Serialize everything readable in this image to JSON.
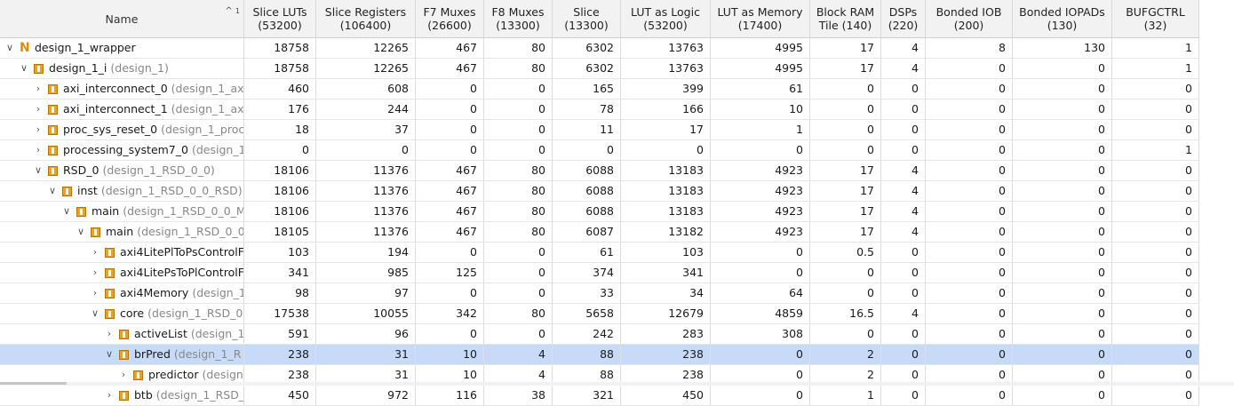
{
  "columns": [
    {
      "line1": "Name",
      "line2": ""
    },
    {
      "line1": "Slice LUTs",
      "line2": "(53200)"
    },
    {
      "line1": "Slice Registers",
      "line2": "(106400)"
    },
    {
      "line1": "F7 Muxes",
      "line2": "(26600)"
    },
    {
      "line1": "F8 Muxes",
      "line2": "(13300)"
    },
    {
      "line1": "Slice",
      "line2": "(13300)"
    },
    {
      "line1": "LUT as Logic",
      "line2": "(53200)"
    },
    {
      "line1": "LUT as Memory",
      "line2": "(17400)"
    },
    {
      "line1": "Block RAM",
      "line2": "Tile (140)"
    },
    {
      "line1": "DSPs",
      "line2": "(220)"
    },
    {
      "line1": "Bonded IOB",
      "line2": "(200)"
    },
    {
      "line1": "Bonded IOPADs",
      "line2": "(130)"
    },
    {
      "line1": "BUFGCTRL",
      "line2": "(32)"
    }
  ],
  "sort_indicator": {
    "arrow": "^",
    "order": "1"
  },
  "rows": [
    {
      "name": "design_1_wrapper",
      "sub": "",
      "depth": 0,
      "expander": "v",
      "icon": "netlist-n-icon",
      "selected": false,
      "values": [
        "18758",
        "12265",
        "467",
        "80",
        "6302",
        "13763",
        "4995",
        "17",
        "4",
        "8",
        "130",
        "1"
      ]
    },
    {
      "name": "design_1_i",
      "sub": "(design_1)",
      "depth": 1,
      "expander": "v",
      "icon": "module-icon",
      "selected": false,
      "values": [
        "18758",
        "12265",
        "467",
        "80",
        "6302",
        "13763",
        "4995",
        "17",
        "4",
        "0",
        "0",
        "1"
      ]
    },
    {
      "name": "axi_interconnect_0",
      "sub": "(design_1_ax",
      "depth": 2,
      "expander": ">",
      "icon": "module-icon",
      "selected": false,
      "values": [
        "460",
        "608",
        "0",
        "0",
        "165",
        "399",
        "61",
        "0",
        "0",
        "0",
        "0",
        "0"
      ]
    },
    {
      "name": "axi_interconnect_1",
      "sub": "(design_1_ax",
      "depth": 2,
      "expander": ">",
      "icon": "module-icon",
      "selected": false,
      "values": [
        "176",
        "244",
        "0",
        "0",
        "78",
        "166",
        "10",
        "0",
        "0",
        "0",
        "0",
        "0"
      ]
    },
    {
      "name": "proc_sys_reset_0",
      "sub": "(design_1_proc",
      "depth": 2,
      "expander": ">",
      "icon": "module-icon",
      "selected": false,
      "values": [
        "18",
        "37",
        "0",
        "0",
        "11",
        "17",
        "1",
        "0",
        "0",
        "0",
        "0",
        "0"
      ]
    },
    {
      "name": "processing_system7_0",
      "sub": "(design_1",
      "depth": 2,
      "expander": ">",
      "icon": "module-icon",
      "selected": false,
      "values": [
        "0",
        "0",
        "0",
        "0",
        "0",
        "0",
        "0",
        "0",
        "0",
        "0",
        "0",
        "1"
      ]
    },
    {
      "name": "RSD_0",
      "sub": "(design_1_RSD_0_0)",
      "depth": 2,
      "expander": "v",
      "icon": "module-icon",
      "selected": false,
      "values": [
        "18106",
        "11376",
        "467",
        "80",
        "6088",
        "13183",
        "4923",
        "17",
        "4",
        "0",
        "0",
        "0"
      ]
    },
    {
      "name": "inst",
      "sub": "(design_1_RSD_0_0_RSD)",
      "depth": 3,
      "expander": "v",
      "icon": "module-icon",
      "selected": false,
      "values": [
        "18106",
        "11376",
        "467",
        "80",
        "6088",
        "13183",
        "4923",
        "17",
        "4",
        "0",
        "0",
        "0"
      ]
    },
    {
      "name": "main",
      "sub": "(design_1_RSD_0_0_M",
      "depth": 4,
      "expander": "v",
      "icon": "module-icon",
      "selected": false,
      "values": [
        "18106",
        "11376",
        "467",
        "80",
        "6088",
        "13183",
        "4923",
        "17",
        "4",
        "0",
        "0",
        "0"
      ]
    },
    {
      "name": "main",
      "sub": "(design_1_RSD_0_0",
      "depth": 5,
      "expander": "v",
      "icon": "module-icon",
      "selected": false,
      "values": [
        "18105",
        "11376",
        "467",
        "80",
        "6087",
        "13182",
        "4923",
        "17",
        "4",
        "0",
        "0",
        "0"
      ]
    },
    {
      "name": "axi4LitePlToPsControlF",
      "sub": "",
      "depth": 6,
      "expander": ">",
      "icon": "module-icon",
      "selected": false,
      "values": [
        "103",
        "194",
        "0",
        "0",
        "61",
        "103",
        "0",
        "0.5",
        "0",
        "0",
        "0",
        "0"
      ]
    },
    {
      "name": "axi4LitePsToPlControlF",
      "sub": "",
      "depth": 6,
      "expander": ">",
      "icon": "module-icon",
      "selected": false,
      "values": [
        "341",
        "985",
        "125",
        "0",
        "374",
        "341",
        "0",
        "0",
        "0",
        "0",
        "0",
        "0"
      ]
    },
    {
      "name": "axi4Memory",
      "sub": "(design_1",
      "depth": 6,
      "expander": ">",
      "icon": "module-icon",
      "selected": false,
      "values": [
        "98",
        "97",
        "0",
        "0",
        "33",
        "34",
        "64",
        "0",
        "0",
        "0",
        "0",
        "0"
      ]
    },
    {
      "name": "core",
      "sub": "(design_1_RSD_0",
      "depth": 6,
      "expander": "v",
      "icon": "module-icon",
      "selected": false,
      "values": [
        "17538",
        "10055",
        "342",
        "80",
        "5658",
        "12679",
        "4859",
        "16.5",
        "4",
        "0",
        "0",
        "0"
      ]
    },
    {
      "name": "activeList",
      "sub": "(design_1",
      "depth": 7,
      "expander": ">",
      "icon": "module-icon",
      "selected": false,
      "values": [
        "591",
        "96",
        "0",
        "0",
        "242",
        "283",
        "308",
        "0",
        "0",
        "0",
        "0",
        "0"
      ]
    },
    {
      "name": "brPred",
      "sub": "(design_1_R",
      "depth": 7,
      "expander": "v",
      "icon": "module-icon",
      "selected": true,
      "values": [
        "238",
        "31",
        "10",
        "4",
        "88",
        "238",
        "0",
        "2",
        "0",
        "0",
        "0",
        "0"
      ]
    },
    {
      "name": "predictor",
      "sub": "(design",
      "depth": 8,
      "expander": ">",
      "icon": "module-icon",
      "selected": false,
      "values": [
        "238",
        "31",
        "10",
        "4",
        "88",
        "238",
        "0",
        "2",
        "0",
        "0",
        "0",
        "0"
      ]
    },
    {
      "name": "btb",
      "sub": "(design_1_RSD_",
      "depth": 7,
      "expander": ">",
      "icon": "module-icon",
      "selected": false,
      "values": [
        "450",
        "972",
        "116",
        "38",
        "321",
        "450",
        "0",
        "1",
        "0",
        "0",
        "0",
        "0"
      ]
    }
  ]
}
